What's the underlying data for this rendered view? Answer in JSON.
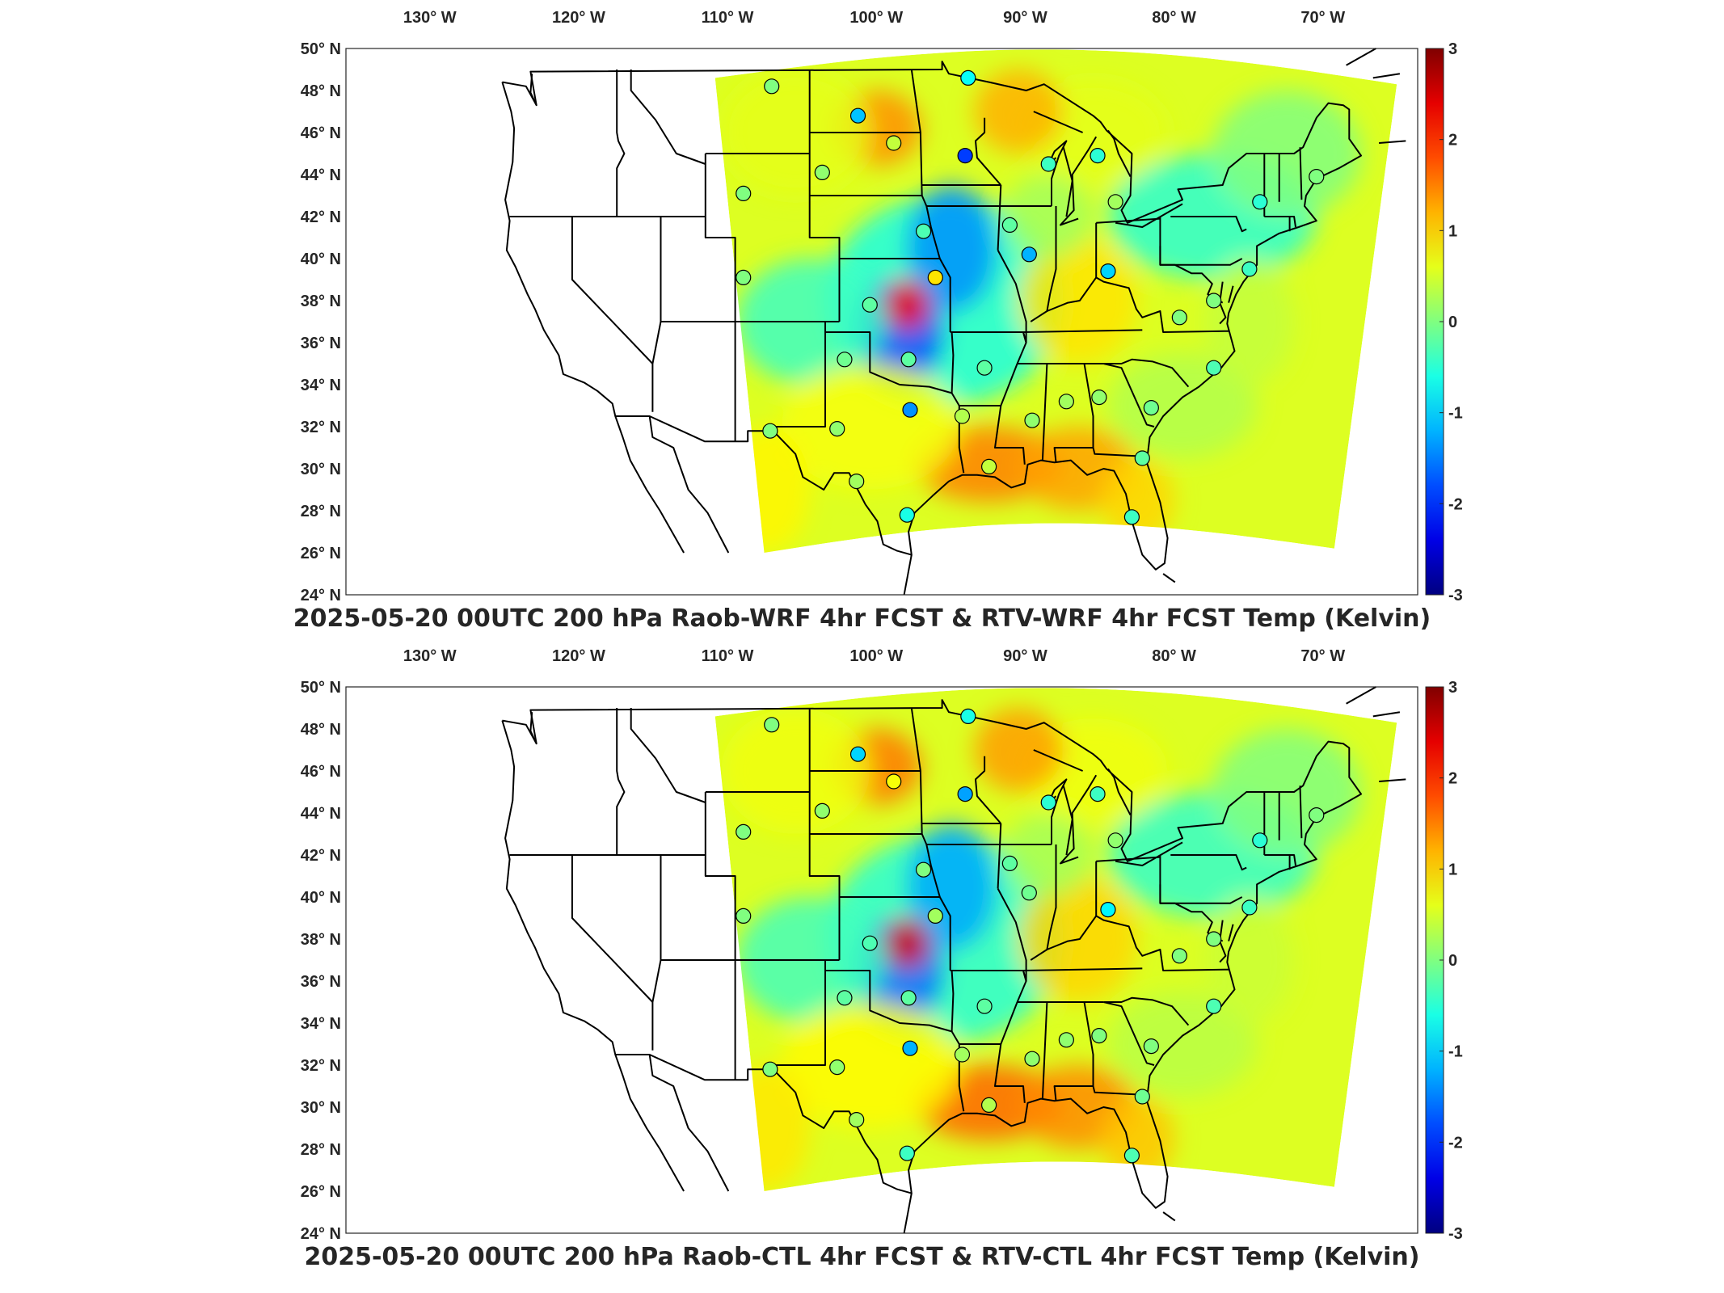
{
  "panels": [
    {
      "title": "2025-05-20 00UTC 200 hPa Raob-WRF 4hr FCST & RTV-WRF 4hr FCST Temp (Kelvin)",
      "stations": [
        {
          "lon": -106.6,
          "lat": 48.2,
          "v": 0.0
        },
        {
          "lon": -93.4,
          "lat": 48.6,
          "v": -0.7
        },
        {
          "lon": -100.8,
          "lat": 46.8,
          "v": -1.1
        },
        {
          "lon": -98.4,
          "lat": 45.5,
          "v": 0.4
        },
        {
          "lon": -93.6,
          "lat": 44.9,
          "v": -1.9
        },
        {
          "lon": -103.2,
          "lat": 44.1,
          "v": 0.1
        },
        {
          "lon": -108.5,
          "lat": 43.1,
          "v": 0.0
        },
        {
          "lon": -88.0,
          "lat": 44.5,
          "v": -0.4
        },
        {
          "lon": -84.7,
          "lat": 44.9,
          "v": -0.5
        },
        {
          "lon": -83.5,
          "lat": 42.7,
          "v": 0.2
        },
        {
          "lon": -90.6,
          "lat": 41.6,
          "v": -0.2
        },
        {
          "lon": -96.4,
          "lat": 41.3,
          "v": -0.3
        },
        {
          "lon": -89.3,
          "lat": 40.2,
          "v": -1.2
        },
        {
          "lon": -84.0,
          "lat": 39.4,
          "v": -1.0
        },
        {
          "lon": -95.6,
          "lat": 39.1,
          "v": 0.9
        },
        {
          "lon": -100.0,
          "lat": 37.8,
          "v": -0.2
        },
        {
          "lon": -108.5,
          "lat": 39.1,
          "v": 0.0
        },
        {
          "lon": -79.2,
          "lat": 37.2,
          "v": 0.0
        },
        {
          "lon": -92.3,
          "lat": 34.8,
          "v": -0.2
        },
        {
          "lon": -97.4,
          "lat": 35.2,
          "v": -0.2
        },
        {
          "lon": -101.7,
          "lat": 35.2,
          "v": -0.1
        },
        {
          "lon": -86.8,
          "lat": 33.2,
          "v": 0.2
        },
        {
          "lon": -84.6,
          "lat": 33.4,
          "v": 0.1
        },
        {
          "lon": -81.1,
          "lat": 32.9,
          "v": -0.1
        },
        {
          "lon": -76.9,
          "lat": 34.8,
          "v": -0.3
        },
        {
          "lon": -89.1,
          "lat": 32.3,
          "v": 0.1
        },
        {
          "lon": -97.3,
          "lat": 32.8,
          "v": -1.4
        },
        {
          "lon": -93.8,
          "lat": 32.5,
          "v": 0.3
        },
        {
          "lon": -102.2,
          "lat": 31.9,
          "v": 0.1
        },
        {
          "lon": -106.7,
          "lat": 31.8,
          "v": 0.0
        },
        {
          "lon": -92.0,
          "lat": 30.1,
          "v": 0.4
        },
        {
          "lon": -81.7,
          "lat": 30.5,
          "v": -0.2
        },
        {
          "lon": -100.9,
          "lat": 29.4,
          "v": 0.2
        },
        {
          "lon": -97.5,
          "lat": 27.8,
          "v": -0.6
        },
        {
          "lon": -82.4,
          "lat": 27.7,
          "v": -0.4
        },
        {
          "lon": -70.0,
          "lat": 43.9,
          "v": 0.0
        },
        {
          "lon": -73.8,
          "lat": 42.7,
          "v": -0.5
        },
        {
          "lon": -76.9,
          "lat": 38.0,
          "v": 0.0
        },
        {
          "lon": -74.5,
          "lat": 39.5,
          "v": -0.4
        }
      ]
    },
    {
      "title": "2025-05-20 00UTC 200 hPa Raob-CTL 4hr FCST & RTV-CTL 4hr FCST Temp (Kelvin)",
      "stations": [
        {
          "lon": -106.6,
          "lat": 48.2,
          "v": 0.0
        },
        {
          "lon": -93.4,
          "lat": 48.6,
          "v": -0.6
        },
        {
          "lon": -100.8,
          "lat": 46.8,
          "v": -1.0
        },
        {
          "lon": -98.4,
          "lat": 45.5,
          "v": 0.7
        },
        {
          "lon": -93.6,
          "lat": 44.9,
          "v": -1.3
        },
        {
          "lon": -103.2,
          "lat": 44.1,
          "v": 0.1
        },
        {
          "lon": -108.5,
          "lat": 43.1,
          "v": 0.0
        },
        {
          "lon": -88.0,
          "lat": 44.5,
          "v": -0.5
        },
        {
          "lon": -84.7,
          "lat": 44.9,
          "v": -0.4
        },
        {
          "lon": -83.5,
          "lat": 42.7,
          "v": 0.1
        },
        {
          "lon": -90.6,
          "lat": 41.6,
          "v": -0.2
        },
        {
          "lon": -96.4,
          "lat": 41.3,
          "v": 0.0
        },
        {
          "lon": -89.3,
          "lat": 40.2,
          "v": -0.1
        },
        {
          "lon": -84.0,
          "lat": 39.4,
          "v": -0.8
        },
        {
          "lon": -95.6,
          "lat": 39.1,
          "v": 0.2
        },
        {
          "lon": -100.0,
          "lat": 37.8,
          "v": -0.3
        },
        {
          "lon": -108.5,
          "lat": 39.1,
          "v": 0.0
        },
        {
          "lon": -79.2,
          "lat": 37.2,
          "v": 0.0
        },
        {
          "lon": -92.3,
          "lat": 34.8,
          "v": -0.2
        },
        {
          "lon": -97.4,
          "lat": 35.2,
          "v": -0.2
        },
        {
          "lon": -101.7,
          "lat": 35.2,
          "v": -0.2
        },
        {
          "lon": -86.8,
          "lat": 33.2,
          "v": 0.1
        },
        {
          "lon": -84.6,
          "lat": 33.4,
          "v": 0.0
        },
        {
          "lon": -81.1,
          "lat": 32.9,
          "v": 0.0
        },
        {
          "lon": -76.9,
          "lat": 34.8,
          "v": -0.3
        },
        {
          "lon": -89.1,
          "lat": 32.3,
          "v": 0.1
        },
        {
          "lon": -97.3,
          "lat": 32.8,
          "v": -1.2
        },
        {
          "lon": -93.8,
          "lat": 32.5,
          "v": 0.2
        },
        {
          "lon": -102.2,
          "lat": 31.9,
          "v": 0.1
        },
        {
          "lon": -106.7,
          "lat": 31.8,
          "v": 0.0
        },
        {
          "lon": -92.0,
          "lat": 30.1,
          "v": 0.3
        },
        {
          "lon": -81.7,
          "lat": 30.5,
          "v": -0.1
        },
        {
          "lon": -100.9,
          "lat": 29.4,
          "v": 0.2
        },
        {
          "lon": -97.5,
          "lat": 27.8,
          "v": -0.4
        },
        {
          "lon": -82.4,
          "lat": 27.7,
          "v": -0.3
        },
        {
          "lon": -70.0,
          "lat": 43.9,
          "v": 0.0
        },
        {
          "lon": -73.8,
          "lat": 42.7,
          "v": -0.5
        },
        {
          "lon": -76.9,
          "lat": 38.0,
          "v": 0.0
        },
        {
          "lon": -74.5,
          "lat": 39.5,
          "v": -0.4
        }
      ]
    }
  ],
  "lon_ticks": [
    {
      "value": -130,
      "label": "130° W"
    },
    {
      "value": -120,
      "label": "120° W"
    },
    {
      "value": -110,
      "label": "110° W"
    },
    {
      "value": -100,
      "label": "100° W"
    },
    {
      "value": -90,
      "label": "90° W"
    },
    {
      "value": -80,
      "label": "80° W"
    },
    {
      "value": -70,
      "label": "70° W"
    }
  ],
  "lat_ticks": [
    {
      "value": 50,
      "label": "50° N"
    },
    {
      "value": 48,
      "label": "48° N"
    },
    {
      "value": 46,
      "label": "46° N"
    },
    {
      "value": 44,
      "label": "44° N"
    },
    {
      "value": 42,
      "label": "42° N"
    },
    {
      "value": 40,
      "label": "40° N"
    },
    {
      "value": 38,
      "label": "38° N"
    },
    {
      "value": 36,
      "label": "36° N"
    },
    {
      "value": 34,
      "label": "34° N"
    },
    {
      "value": 32,
      "label": "32° N"
    },
    {
      "value": 30,
      "label": "30° N"
    },
    {
      "value": 28,
      "label": "28° N"
    },
    {
      "value": 26,
      "label": "26° N"
    },
    {
      "value": 24,
      "label": "24° N"
    }
  ],
  "colorbar": {
    "min": -3,
    "max": 3,
    "ticks": [
      "3",
      "2",
      "1",
      "0",
      "-1",
      "-2",
      "-3"
    ],
    "colormap": "jet"
  },
  "domain_extent": {
    "lon_min": -134,
    "lon_max": -64,
    "lat_min": 24,
    "lat_max": 50
  },
  "colors": {
    "axes": "#000000",
    "text": "#262626",
    "background": "#ffffff"
  }
}
